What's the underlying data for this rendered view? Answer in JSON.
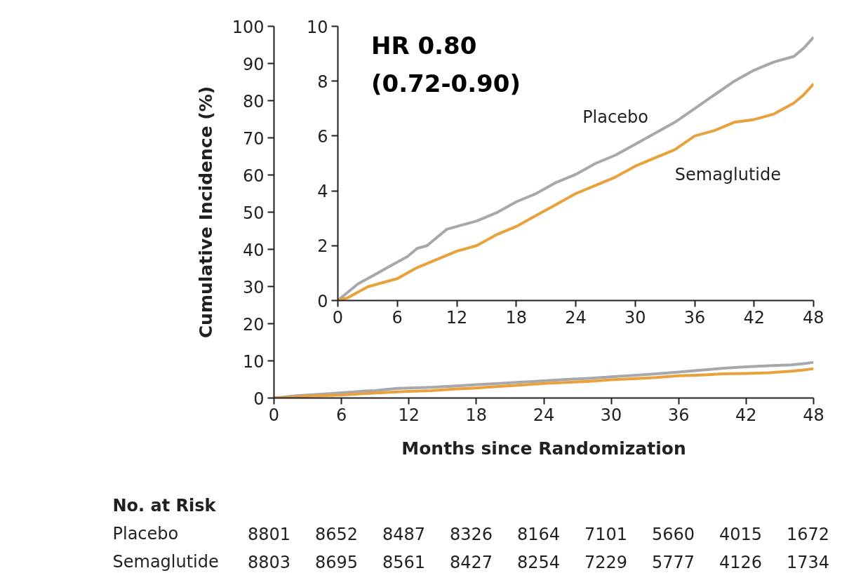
{
  "chart_data": [
    {
      "type": "line",
      "xlabel": "Months since Randomization",
      "ylabel": "Cumulative Incidence (%)",
      "xlim": [
        0,
        48
      ],
      "xticks": [
        0,
        6,
        12,
        18,
        24,
        30,
        36,
        42,
        48
      ],
      "ylim": [
        0,
        100
      ],
      "yticks": [
        0,
        10,
        20,
        30,
        40,
        50,
        60,
        70,
        80,
        90,
        100
      ],
      "grid": false,
      "series": [
        {
          "color": "#a6a8ab",
          "x": [
            0,
            1,
            2,
            3,
            4,
            5,
            6,
            7,
            8,
            9,
            10,
            11,
            12,
            14,
            16,
            18,
            20,
            22,
            24,
            26,
            28,
            30,
            32,
            34,
            36,
            38,
            40,
            42,
            44,
            46,
            47,
            48
          ],
          "values": [
            0,
            0.3,
            0.6,
            0.8,
            1.0,
            1.2,
            1.4,
            1.6,
            1.9,
            2.0,
            2.3,
            2.6,
            2.7,
            2.9,
            3.2,
            3.6,
            3.9,
            4.3,
            4.6,
            5.0,
            5.3,
            5.7,
            6.1,
            6.5,
            7.0,
            7.5,
            8.0,
            8.4,
            8.7,
            8.9,
            9.2,
            9.6
          ]
        },
        {
          "color": "#e9a13b",
          "x": [
            0,
            1,
            2,
            3,
            4,
            6,
            8,
            10,
            12,
            14,
            16,
            18,
            20,
            22,
            24,
            26,
            28,
            30,
            32,
            34,
            36,
            38,
            40,
            42,
            44,
            46,
            47,
            48
          ],
          "values": [
            0,
            0.1,
            0.3,
            0.5,
            0.6,
            0.8,
            1.2,
            1.5,
            1.8,
            2.0,
            2.4,
            2.7,
            3.1,
            3.5,
            3.9,
            4.2,
            4.5,
            4.9,
            5.2,
            5.5,
            6.0,
            6.2,
            6.5,
            6.6,
            6.8,
            7.2,
            7.5,
            7.9
          ]
        }
      ],
      "annotations": [
        "No. at Risk",
        "Placebo 8801 8652 8487 8326 8164 7101 5660 4015 1672",
        "Semaglutide 8803 8695 8561 8427 8254 7229 5777 4126 1734"
      ]
    },
    {
      "type": "line",
      "xlim": [
        0,
        48
      ],
      "xticks": [
        0,
        6,
        12,
        18,
        24,
        30,
        36,
        42,
        48
      ],
      "ylim": [
        0,
        10
      ],
      "yticks": [
        0,
        2,
        4,
        6,
        8,
        10
      ],
      "grid": false,
      "series": [
        {
          "name": "Placebo",
          "color": "#a6a8ab",
          "x": [
            0,
            1,
            2,
            3,
            4,
            5,
            6,
            7,
            8,
            9,
            10,
            11,
            12,
            14,
            16,
            18,
            20,
            22,
            24,
            26,
            28,
            30,
            32,
            34,
            36,
            38,
            40,
            42,
            44,
            46,
            47,
            48
          ],
          "values": [
            0,
            0.3,
            0.6,
            0.8,
            1.0,
            1.2,
            1.4,
            1.6,
            1.9,
            2.0,
            2.3,
            2.6,
            2.7,
            2.9,
            3.2,
            3.6,
            3.9,
            4.3,
            4.6,
            5.0,
            5.3,
            5.7,
            6.1,
            6.5,
            7.0,
            7.5,
            8.0,
            8.4,
            8.7,
            8.9,
            9.2,
            9.6
          ]
        },
        {
          "name": "Semaglutide",
          "color": "#e9a13b",
          "x": [
            0,
            1,
            2,
            3,
            4,
            6,
            8,
            10,
            12,
            14,
            16,
            18,
            20,
            22,
            24,
            26,
            28,
            30,
            32,
            34,
            36,
            38,
            40,
            42,
            44,
            46,
            47,
            48
          ],
          "values": [
            0,
            0.1,
            0.3,
            0.5,
            0.6,
            0.8,
            1.2,
            1.5,
            1.8,
            2.0,
            2.4,
            2.7,
            3.1,
            3.5,
            3.9,
            4.2,
            4.5,
            4.9,
            5.2,
            5.5,
            6.0,
            6.2,
            6.5,
            6.6,
            6.8,
            7.2,
            7.5,
            7.9
          ]
        }
      ],
      "annotations": [
        "HR 0.80\n(0.72-0.90)"
      ]
    }
  ]
}
